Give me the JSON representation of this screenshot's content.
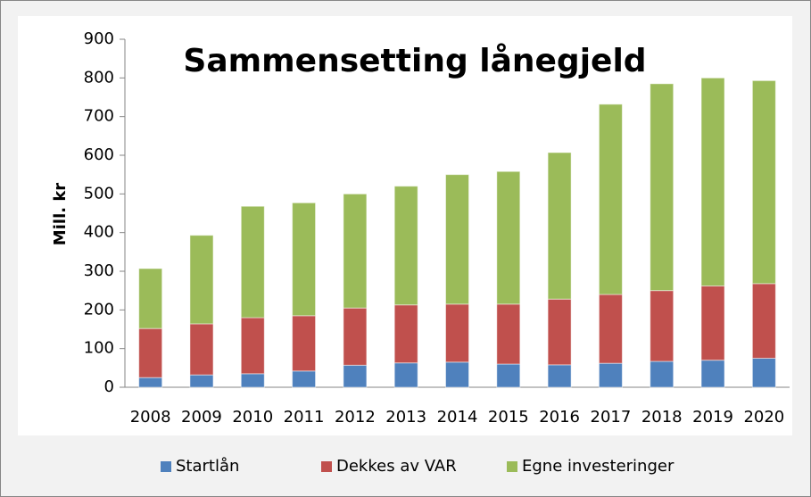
{
  "chart_data": {
    "type": "bar",
    "stacked": true,
    "title": "Sammensetting lånegjeld",
    "y_label": "Mill. kr",
    "categories": [
      "2008",
      "2009",
      "2010",
      "2011",
      "2012",
      "2013",
      "2014",
      "2015",
      "2016",
      "2017",
      "2018",
      "2019",
      "2020"
    ],
    "series": [
      {
        "name": "Startlån",
        "color": "#4f81bd",
        "values": [
          25,
          32,
          35,
          42,
          57,
          63,
          65,
          60,
          58,
          62,
          67,
          70,
          75
        ]
      },
      {
        "name": "Dekkes av VAR",
        "color": "#c0504d",
        "values": [
          127,
          132,
          145,
          143,
          148,
          150,
          150,
          155,
          170,
          178,
          183,
          192,
          193
        ]
      },
      {
        "name": "Egne investeringer",
        "color": "#9bbb59",
        "values": [
          155,
          229,
          288,
          292,
          295,
          307,
          335,
          343,
          379,
          492,
          535,
          538,
          525
        ]
      }
    ],
    "ylim": [
      0,
      900
    ],
    "yticks": [
      0,
      100,
      200,
      300,
      400,
      500,
      600,
      700,
      800,
      900
    ],
    "grid": false,
    "legend": "bottom"
  }
}
